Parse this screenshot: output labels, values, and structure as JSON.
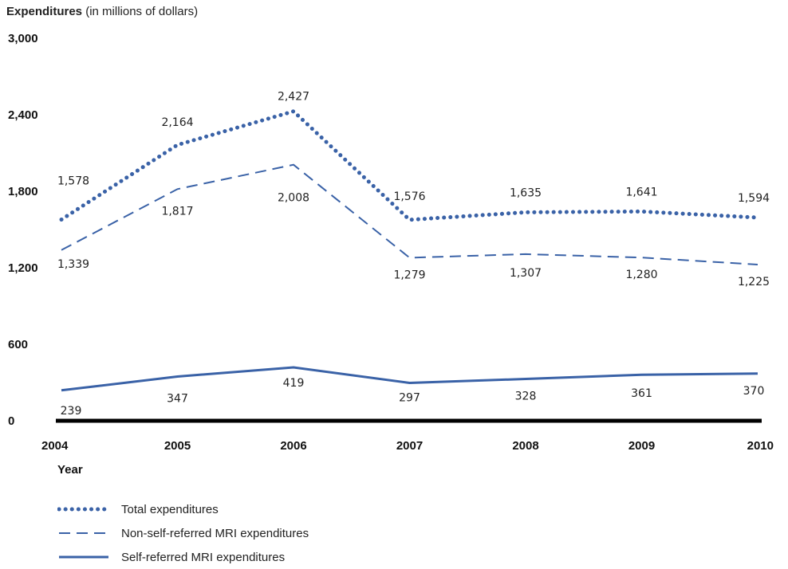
{
  "chart_data": {
    "type": "line",
    "title": "",
    "ylabel_bold": "Expenditures",
    "ylabel_rest": " (in millions of dollars)",
    "xlabel": "Year",
    "ylim": [
      0,
      3000
    ],
    "yticks": [
      "0",
      "600",
      "1,200",
      "1,800",
      "2,400",
      "3,000"
    ],
    "ytick_values": [
      0,
      600,
      1200,
      1800,
      2400,
      3000
    ],
    "categories": [
      "2004",
      "2005",
      "2006",
      "2007",
      "2008",
      "2009",
      "2010"
    ],
    "series": [
      {
        "name": "Total expenditures",
        "style": "dotted",
        "color": "#3a62a7",
        "values": [
          1578,
          2164,
          2427,
          1576,
          1635,
          1641,
          1594
        ],
        "labels": [
          "1,578",
          "2,164",
          "2,427",
          "1,576",
          "1,635",
          "1,641",
          "1,594"
        ]
      },
      {
        "name": "Non-self-referred MRI expenditures",
        "style": "dashed",
        "color": "#3a62a7",
        "values": [
          1339,
          1817,
          2008,
          1279,
          1307,
          1280,
          1225
        ],
        "labels": [
          "1,339",
          "1,817",
          "2,008",
          "1,279",
          "1,307",
          "1,280",
          "1,225"
        ]
      },
      {
        "name": "Self-referred MRI expenditures",
        "style": "solid",
        "color": "#3a62a7",
        "values": [
          239,
          347,
          419,
          297,
          328,
          361,
          370
        ],
        "labels": [
          "239",
          "347",
          "419",
          "297",
          "328",
          "361",
          "370"
        ]
      }
    ],
    "grid": false,
    "legend_position": "bottom-left"
  }
}
